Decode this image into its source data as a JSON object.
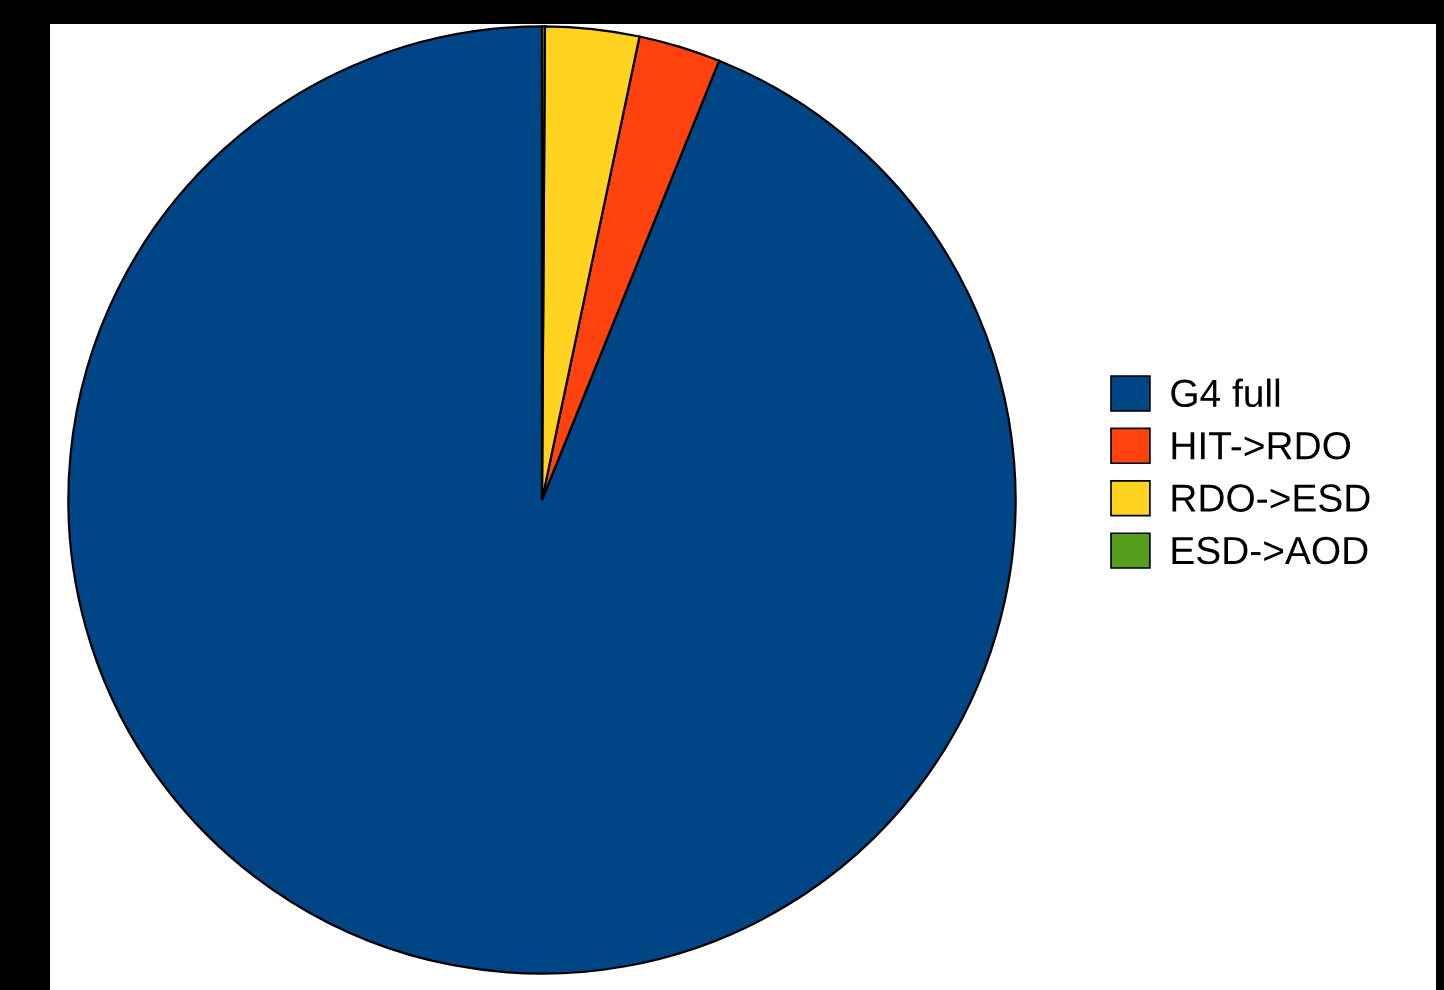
{
  "chart_data": {
    "type": "pie",
    "categories": [
      "G4 full",
      "HIT->RDO",
      "RDO->ESD",
      "ESD->AOD"
    ],
    "values": [
      93.9,
      2.8,
      3.2,
      0.1
    ],
    "colors": [
      "#004586",
      "#ff420e",
      "#ffd320",
      "#579d1c"
    ],
    "legend": "right"
  }
}
